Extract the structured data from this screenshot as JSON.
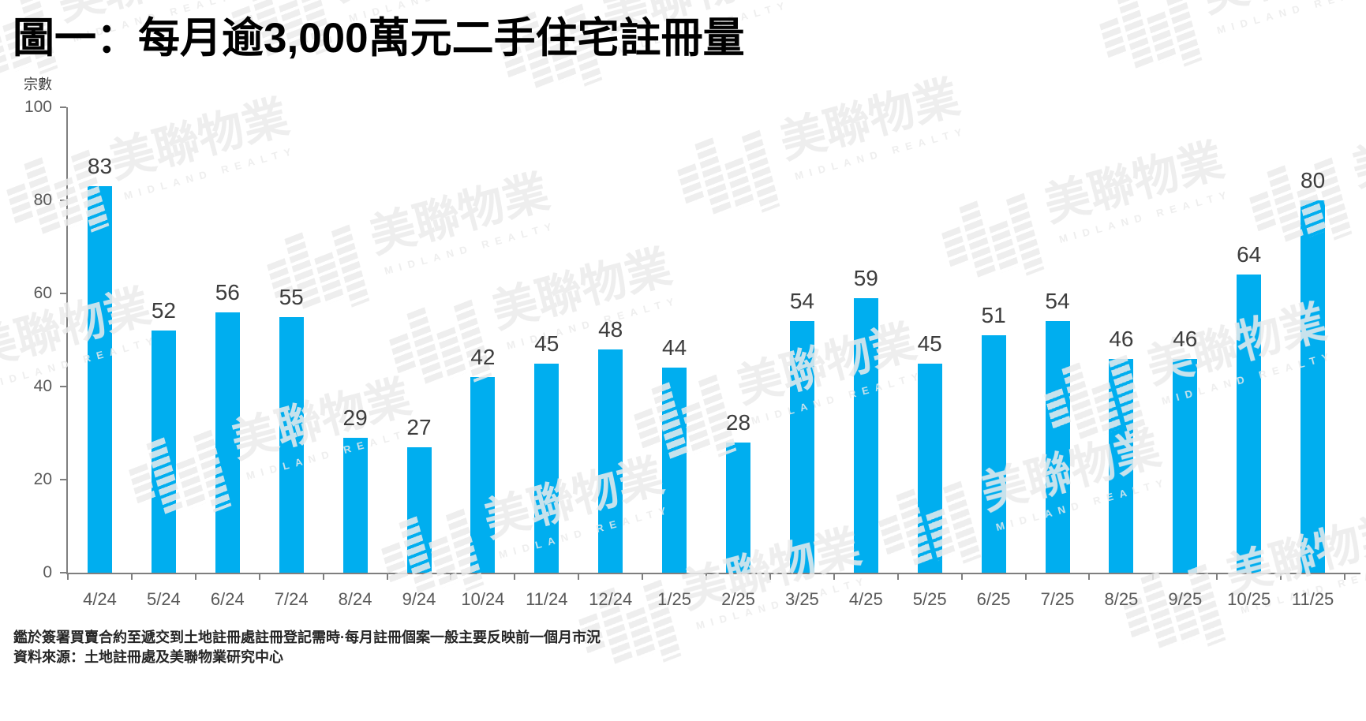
{
  "title": "圖一：每月逾3,000萬元二手住宅註冊量",
  "watermark": {
    "cjk": "美聯物業",
    "en": "MIDLAND REALTY"
  },
  "footnotes": {
    "line1": "鑑於簽署買賣合約至遞交到土地註冊處註冊登記需時·每月註冊個案一般主要反映前一個月市況",
    "line2": "資料來源：土地註冊處及美聯物業研究中心"
  },
  "colors": {
    "bar": "#00AEEF",
    "axis": "#7F7F7F",
    "value_label": "#3D3D3D",
    "tick_label": "#595959",
    "watermark": "#EBEBEB"
  },
  "chart_data": {
    "type": "bar",
    "title": "圖一：每月逾3,000萬元二手住宅註冊量",
    "xlabel": "",
    "ylabel": "宗數",
    "ylim": [
      0,
      100
    ],
    "yticks": [
      0,
      20,
      40,
      60,
      80,
      100
    ],
    "grid": false,
    "legend": "none",
    "categories": [
      "4/24",
      "5/24",
      "6/24",
      "7/24",
      "8/24",
      "9/24",
      "10/24",
      "11/24",
      "12/24",
      "1/25",
      "2/25",
      "3/25",
      "4/25",
      "5/25",
      "6/25",
      "7/25",
      "8/25",
      "9/25",
      "10/25",
      "11/25"
    ],
    "values": [
      83,
      52,
      56,
      55,
      29,
      27,
      42,
      45,
      48,
      44,
      28,
      54,
      59,
      45,
      51,
      54,
      46,
      46,
      64,
      80
    ]
  }
}
